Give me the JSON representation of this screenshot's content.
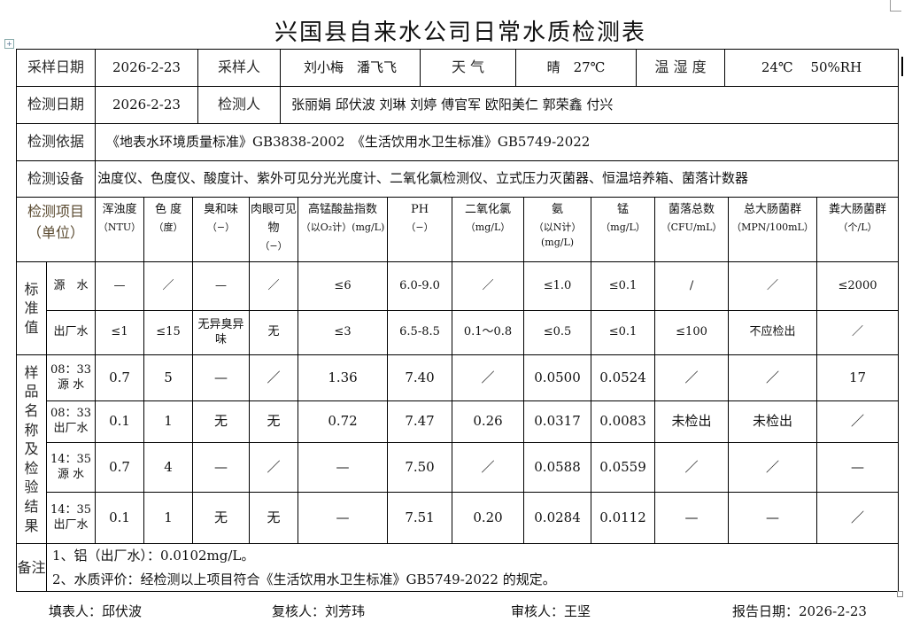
{
  "title": "兴国县自来水公司日常水质检测表",
  "info": {
    "sampling_date_label": "采样日期",
    "sampling_date": "2026-2-23",
    "sampler_label": "采样人",
    "samplers": "刘小梅　潘飞飞",
    "weather_label": "天 气",
    "weather": "晴　27℃",
    "temp_humidity_label": "温 湿 度",
    "temp_humidity": "24℃　 50%RH",
    "test_date_label": "检测日期",
    "test_date": "2026-2-23",
    "tester_label": "检测人",
    "testers": "张丽娟 邱伏波 刘琳 刘婷 傅官军 欧阳美仁 郭荣鑫 付兴",
    "basis_label": "检测依据",
    "basis": "《地表水环境质量标准》GB3838-2002　《生活饮用水卫生标准》GB5749-2022",
    "equipment_label": "检测设备",
    "equipment": "浊度仪、色度仪、酸度计、紫外可见分光光度计、二氧化氯检测仪、立式压力灭菌器、恒温培养箱、菌落计数器"
  },
  "table": {
    "item_header": [
      "检测项目",
      "（单位）"
    ],
    "columns": [
      {
        "name": "浑浊度",
        "unit": "（NTU）"
      },
      {
        "name": "色 度",
        "unit": "（度）"
      },
      {
        "name": "臭和味",
        "unit": "（−）"
      },
      {
        "name": "肉眼可见物",
        "unit": "（−）"
      },
      {
        "name": "高锰酸盐指数",
        "unit": "（以O₂计）(mg/L)"
      },
      {
        "name": "PH",
        "unit": "（−）"
      },
      {
        "name": "二氧化氯",
        "unit": "（mg/L）"
      },
      {
        "name": "氨",
        "unit": "（以N计）(mg/L)"
      },
      {
        "name": "锰",
        "unit": "（mg/L）"
      },
      {
        "name": "菌落总数",
        "unit": "（CFU/mL）"
      },
      {
        "name": "总大肠菌群",
        "unit": "（MPN/100mL）"
      },
      {
        "name": "粪大肠菌群",
        "unit": "（个/L）"
      }
    ],
    "standard_group_label": "标准值",
    "standards": [
      {
        "label": "源　水",
        "values": [
          "—",
          "／",
          "—",
          "／",
          "≤6",
          "6.0-9.0",
          "／",
          "≤1.0",
          "≤0.1",
          "/",
          "／",
          "≤2000"
        ]
      },
      {
        "label": "出厂水",
        "values": [
          "≤1",
          "≤15",
          "无异臭异味",
          "无",
          "≤3",
          "6.5-8.5",
          "0.1～0.8",
          "≤0.5",
          "≤0.1",
          "≤100",
          "不应检出",
          "／"
        ]
      }
    ],
    "results_group_label": "样品名称及检验结果",
    "results": [
      {
        "time": "08：33",
        "sample": "源 水",
        "values": [
          "0.7",
          "5",
          "—",
          "／",
          "1.36",
          "7.40",
          "／",
          "0.0500",
          "0.0524",
          "／",
          "／",
          "17"
        ]
      },
      {
        "time": "08：33",
        "sample": "出厂水",
        "values": [
          "0.1",
          "1",
          "无",
          "无",
          "0.72",
          "7.47",
          "0.26",
          "0.0317",
          "0.0083",
          "未检出",
          "未检出",
          "／"
        ]
      },
      {
        "time": "14：35",
        "sample": "源 水",
        "values": [
          "0.7",
          "4",
          "—",
          "／",
          "—",
          "7.50",
          "／",
          "0.0588",
          "0.0559",
          "／",
          "／",
          "—"
        ]
      },
      {
        "time": "14：35",
        "sample": "出厂水",
        "values": [
          "0.1",
          "1",
          "无",
          "无",
          "—",
          "7.51",
          "0.20",
          "0.0284",
          "0.0112",
          "—",
          "—",
          "／"
        ]
      }
    ],
    "remarks_label": "备注",
    "remarks": [
      "1、铝（出厂水）：0.0102mg/L。",
      "2、水质评价：经检测以上项目符合《生活饮用水卫生标准》GB5749-2022 的规定。"
    ]
  },
  "footer": {
    "filler": "填表人：邱伏波",
    "reviewer": "复核人：刘芳玮",
    "auditor": "审核人：王坚",
    "report_date": "报告日期：2026-2-23"
  }
}
